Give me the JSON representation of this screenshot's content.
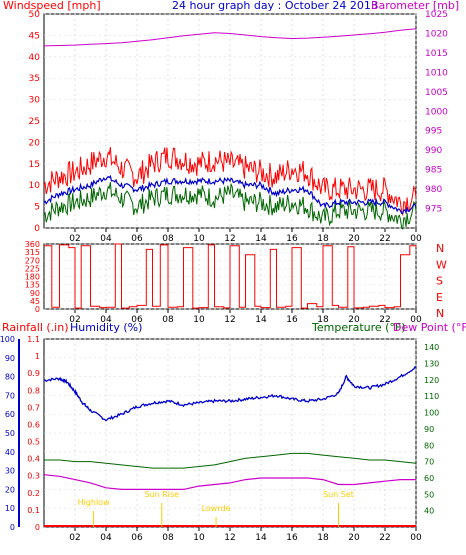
{
  "header": {
    "left_label": "Windspeed [mph]",
    "title": "24 hour graph day : October 24 2013",
    "right_label": "Barometer [mb]"
  },
  "colors": {
    "red": "#ff0000",
    "blue": "#0000cc",
    "green": "#006600",
    "magenta": "#cc00cc",
    "black": "#000000",
    "yellow": "#ffcc00"
  },
  "chart_data": [
    {
      "type": "line",
      "title": "24 hour graph day : October 24 2013",
      "x_tick_labels": [
        "02",
        "04",
        "06",
        "08",
        "10",
        "12",
        "14",
        "16",
        "18",
        "20",
        "22",
        "00"
      ],
      "left_axis": {
        "label": "Windspeed [mph]",
        "ylim": [
          0,
          50
        ],
        "ticks": [
          0,
          5,
          10,
          15,
          20,
          25,
          30,
          35,
          40,
          45,
          50
        ]
      },
      "right_axis": {
        "label": "Barometer [mb]",
        "ylim": [
          970,
          1025
        ],
        "ticks": [
          975,
          980,
          985,
          990,
          995,
          1000,
          1005,
          1010,
          1015,
          1020,
          1025
        ]
      },
      "series": [
        {
          "name": "Windspeed",
          "color": "#ff0000",
          "axis": "left",
          "hours": [
            0,
            1,
            2,
            3,
            4,
            5,
            6,
            7,
            8,
            9,
            10,
            11,
            12,
            13,
            14,
            15,
            16,
            17,
            18,
            19,
            20,
            21,
            22,
            23,
            24
          ],
          "values": [
            10,
            12,
            13,
            15,
            17,
            14,
            12,
            15,
            17,
            16,
            15,
            16,
            15,
            14,
            13,
            12,
            14,
            13,
            9,
            9,
            9,
            9,
            9,
            6,
            7
          ]
        },
        {
          "name": "Gust",
          "color": "#006600",
          "axis": "left",
          "hours": [
            0,
            1,
            2,
            3,
            4,
            5,
            6,
            7,
            8,
            9,
            10,
            11,
            12,
            13,
            14,
            15,
            16,
            17,
            18,
            19,
            20,
            21,
            22,
            23,
            24
          ],
          "values": [
            3,
            5,
            6,
            7,
            9,
            7,
            5,
            7,
            8,
            8,
            8,
            7,
            8,
            6,
            6,
            5,
            6,
            5,
            2,
            4,
            4,
            4,
            4,
            2,
            4
          ]
        },
        {
          "name": "Average wind",
          "color": "#0000cc",
          "axis": "left",
          "hours": [
            0,
            1,
            2,
            3,
            4,
            5,
            6,
            7,
            8,
            9,
            10,
            11,
            12,
            13,
            14,
            15,
            16,
            17,
            18,
            19,
            20,
            21,
            22,
            23,
            24
          ],
          "values": [
            6,
            8,
            9,
            10,
            12,
            10,
            9,
            10,
            11,
            11,
            11,
            11,
            11,
            10,
            10,
            8,
            9,
            9,
            5,
            6,
            6,
            6,
            6,
            4,
            5
          ]
        },
        {
          "name": "Barometer",
          "color": "#cc00cc",
          "axis": "right",
          "hours": [
            0,
            1,
            2,
            3,
            4,
            5,
            6,
            7,
            8,
            9,
            10,
            11,
            12,
            13,
            14,
            15,
            16,
            17,
            18,
            19,
            20,
            21,
            22,
            23,
            24
          ],
          "values": [
            1016.8,
            1016.9,
            1017,
            1017.2,
            1017.4,
            1017.6,
            1018,
            1018.4,
            1018.9,
            1019.4,
            1019.8,
            1020.2,
            1020,
            1019.6,
            1019.2,
            1018.9,
            1018.7,
            1018.8,
            1019,
            1019.3,
            1019.6,
            1019.9,
            1020.3,
            1020.8,
            1021.2
          ]
        }
      ]
    },
    {
      "type": "line",
      "x_tick_labels": [
        "02",
        "04",
        "06",
        "08",
        "10",
        "12",
        "14",
        "16",
        "18",
        "20",
        "22",
        "00"
      ],
      "left_axis": {
        "ylim": [
          0,
          360
        ],
        "ticks": [
          0,
          45,
          90,
          135,
          180,
          225,
          270,
          315,
          360
        ]
      },
      "right_axis": {
        "labels": [
          "N",
          "W",
          "S",
          "E",
          "N"
        ]
      },
      "series": [
        {
          "name": "Wind direction",
          "color": "#ff0000",
          "hours": [
            0,
            0.5,
            1,
            1.6,
            2,
            2.4,
            3,
            3.6,
            4,
            4.6,
            5,
            5.5,
            6,
            6.6,
            7,
            7.5,
            8,
            8.6,
            9,
            9.6,
            10,
            10.6,
            11,
            11.6,
            12,
            12.6,
            13,
            13.6,
            14,
            14.6,
            15,
            15.6,
            16,
            16.6,
            17,
            17.6,
            18,
            18.6,
            19,
            19.6,
            20,
            20.6,
            21,
            21.6,
            22,
            22.6,
            23,
            23.6,
            24
          ],
          "values": [
            350,
            10,
            355,
            340,
            5,
            350,
            15,
            8,
            10,
            360,
            5,
            12,
            20,
            330,
            15,
            355,
            10,
            12,
            340,
            5,
            8,
            355,
            12,
            6,
            350,
            10,
            300,
            15,
            8,
            330,
            10,
            15,
            340,
            5,
            30,
            12,
            350,
            20,
            10,
            345,
            6,
            10,
            15,
            20,
            8,
            12,
            300,
            350,
            340
          ]
        }
      ]
    },
    {
      "type": "line",
      "x_tick_labels": [
        "02",
        "04",
        "06",
        "08",
        "10",
        "12",
        "14",
        "16",
        "18",
        "20",
        "22",
        "00"
      ],
      "annotations": [
        "Highlow",
        "Sun Rise",
        "Lowrde",
        "Sun Set"
      ],
      "left_axes": [
        {
          "label": "Humidity (%)",
          "ylim": [
            0,
            100
          ],
          "ticks": [
            0,
            10,
            20,
            30,
            40,
            50,
            60,
            70,
            80,
            90,
            100
          ]
        },
        {
          "label": "Rainfall (.in)",
          "ylim": [
            0,
            1.1
          ],
          "ticks": [
            0,
            0.1,
            0.2,
            0.3,
            0.4,
            0.5,
            0.6,
            0.7,
            0.8,
            0.9,
            1,
            1.1
          ]
        }
      ],
      "right_axis": {
        "label": "Temperature (°F)",
        "ylim": [
          30,
          145
        ],
        "ticks": [
          40,
          50,
          60,
          70,
          80,
          90,
          100,
          110,
          120,
          130,
          140
        ]
      },
      "right_label_2": "Dew Point (°F)",
      "series": [
        {
          "name": "Humidity",
          "color": "#0000cc",
          "axis": "humidity",
          "hours": [
            0,
            1,
            1.5,
            2,
            2.5,
            3,
            4,
            5,
            6,
            7,
            8,
            9,
            10,
            11,
            12,
            13,
            14,
            15,
            16,
            17,
            18,
            19,
            19.5,
            20,
            21,
            22,
            23,
            24
          ],
          "values": [
            78,
            79,
            77,
            72,
            66,
            62,
            57,
            60,
            64,
            66,
            67,
            65,
            66,
            67,
            67,
            68,
            69,
            70,
            68,
            67,
            68,
            71,
            80,
            75,
            74,
            76,
            80,
            85
          ]
        },
        {
          "name": "Temperature",
          "color": "#006600",
          "axis": "temp",
          "hours": [
            0,
            1,
            2,
            3,
            4,
            5,
            6,
            7,
            8,
            9,
            10,
            11,
            12,
            13,
            14,
            15,
            16,
            17,
            18,
            19,
            20,
            21,
            22,
            23,
            24
          ],
          "values": [
            71,
            71,
            70,
            70,
            69,
            68,
            67,
            66,
            66,
            66,
            67,
            68,
            70,
            72,
            73,
            74,
            75,
            75,
            74,
            73,
            72,
            71,
            71,
            70,
            69
          ]
        },
        {
          "name": "Dew Point",
          "color": "#cc00cc",
          "axis": "temp",
          "hours": [
            0,
            1,
            2,
            3,
            4,
            5,
            6,
            7,
            8,
            9,
            10,
            11,
            12,
            13,
            14,
            15,
            16,
            17,
            18,
            19,
            20,
            21,
            22,
            23,
            24
          ],
          "values": [
            62,
            61,
            59,
            57,
            54,
            53,
            53,
            53,
            53,
            53,
            55,
            56,
            57,
            59,
            60,
            60,
            60,
            60,
            59,
            56,
            56,
            57,
            58,
            59,
            59
          ]
        },
        {
          "name": "Rainfall",
          "color": "#ff0000",
          "axis": "rain",
          "hours": [
            0,
            24
          ],
          "values": [
            0,
            0
          ]
        }
      ]
    }
  ]
}
